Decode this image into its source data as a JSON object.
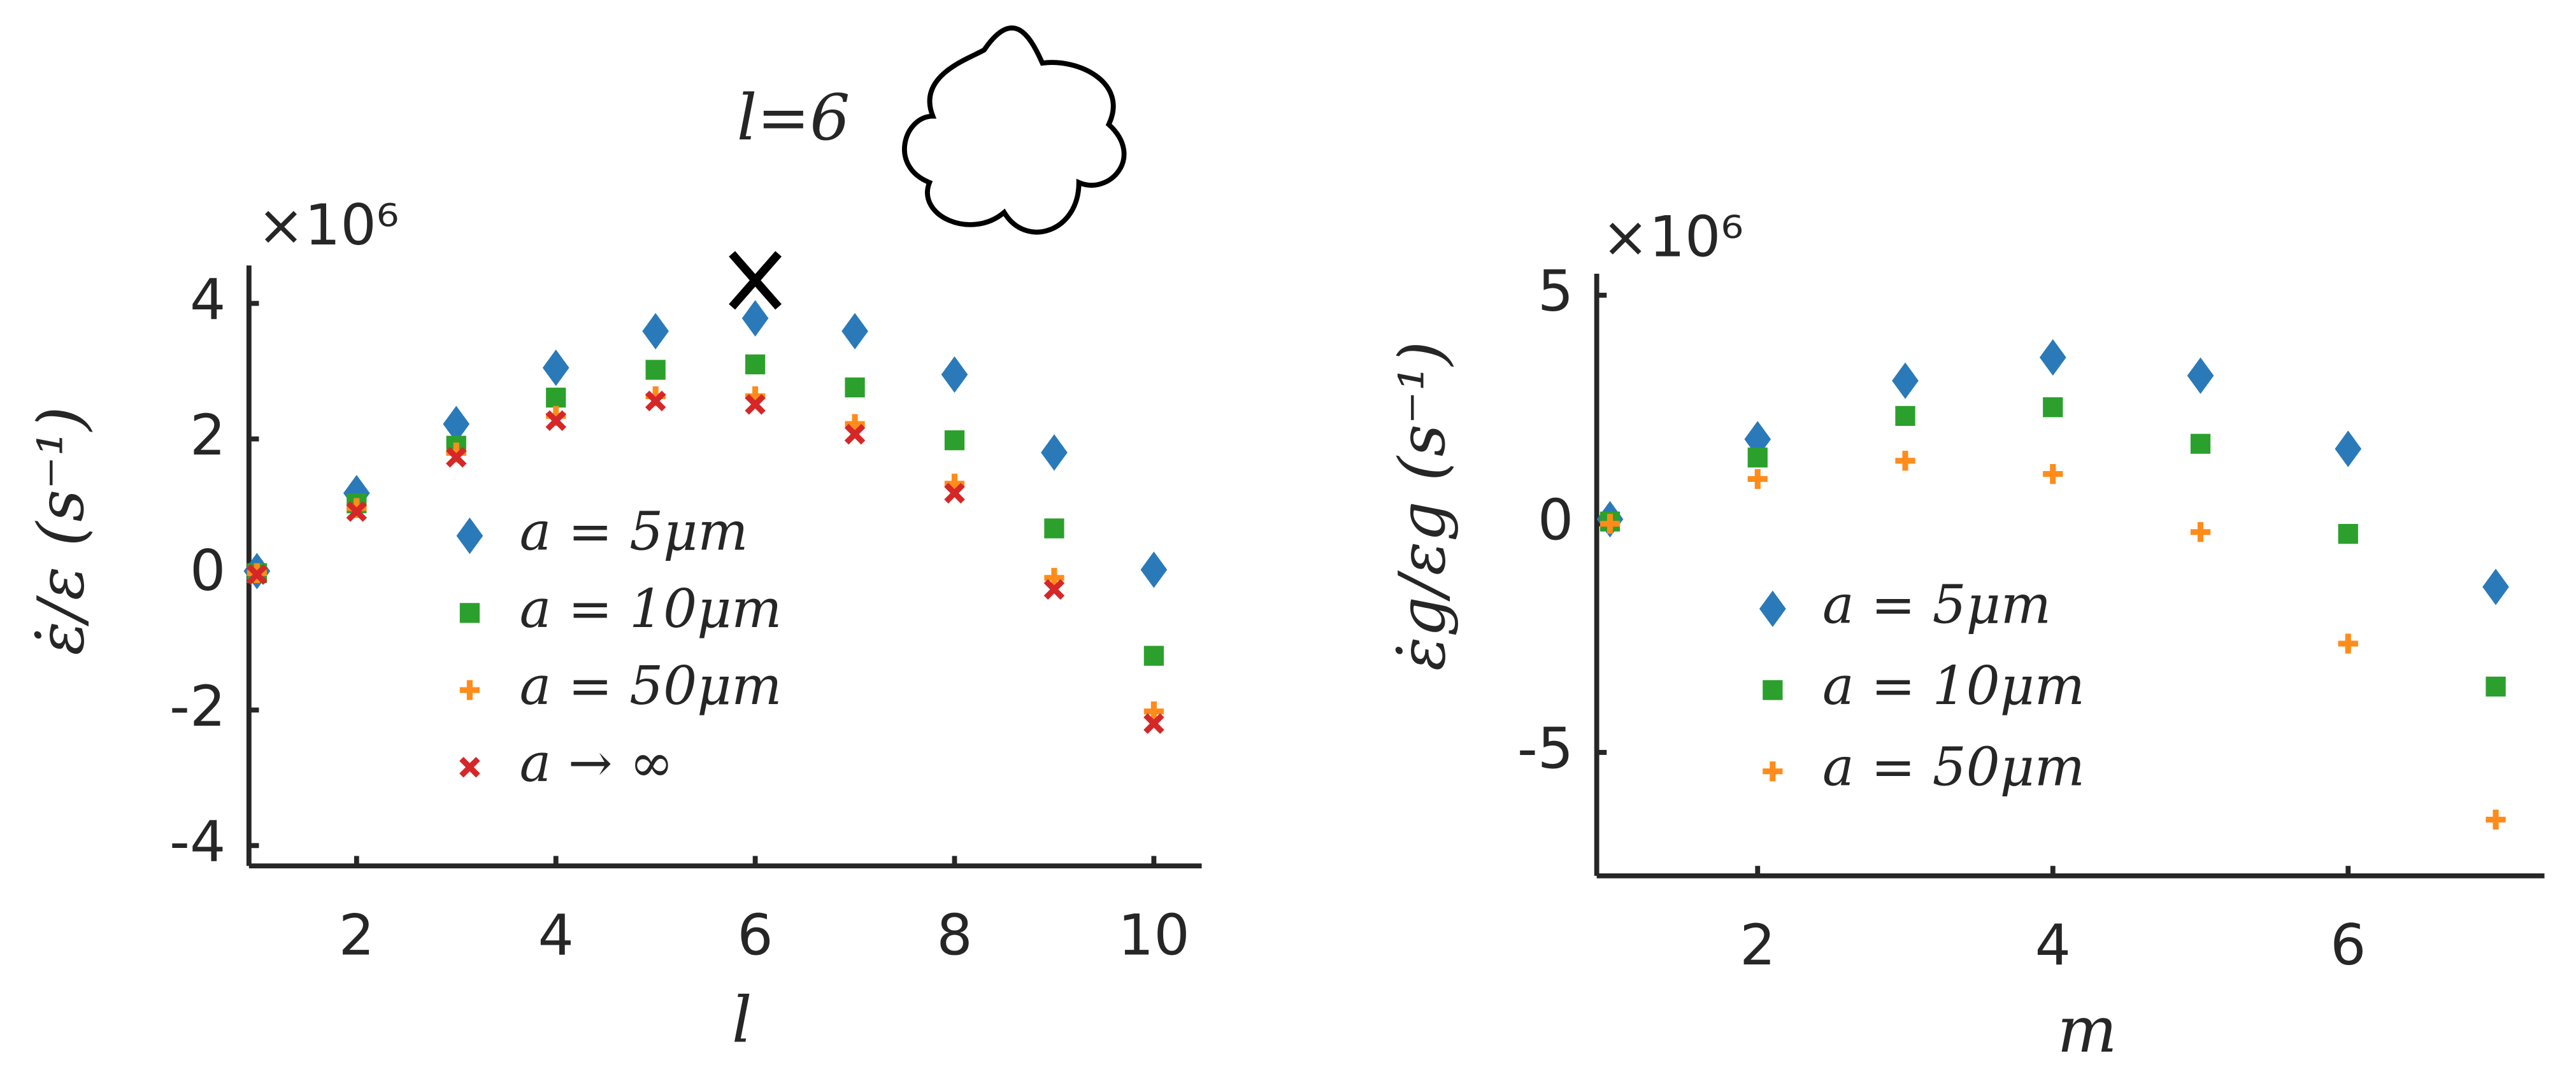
{
  "chart_data": [
    {
      "type": "scatter",
      "multiplier": "×10⁶",
      "ylabel": "ε̇/ε (s⁻¹)",
      "xlabel": "l",
      "x": [
        1,
        2,
        3,
        4,
        5,
        6,
        7,
        8,
        9,
        10
      ],
      "xlim": [
        0.92,
        10.48
      ],
      "xticks": [
        2,
        4,
        6,
        8,
        10
      ],
      "ylim": [
        -4.3,
        4.56
      ],
      "yticks": [
        -4,
        -2,
        0,
        2,
        4
      ],
      "annotation": "l=6",
      "highlight": {
        "x": 6,
        "y": 4.34
      },
      "series": [
        {
          "name": "a = 5μm",
          "color": "#2a7ab9",
          "marker": "diamond",
          "values": [
            0.05,
            1.2,
            2.22,
            3.05,
            3.59,
            3.78,
            3.59,
            2.95,
            1.8,
            0.07
          ]
        },
        {
          "name": "a = 10μm",
          "color": "#2ca02c",
          "marker": "square",
          "values": [
            0.02,
            1.05,
            1.9,
            2.61,
            3.02,
            3.1,
            2.76,
            1.98,
            0.68,
            -1.2
          ]
        },
        {
          "name": "a = 50μm",
          "color": "#ff8c1a",
          "marker": "plus",
          "values": [
            0.02,
            0.98,
            1.8,
            2.34,
            2.63,
            2.63,
            2.22,
            1.34,
            -0.05,
            -2.02
          ]
        },
        {
          "name": "a → ∞",
          "color": "#d62728",
          "marker": "cross",
          "values": [
            0,
            0.93,
            1.73,
            2.27,
            2.56,
            2.51,
            2.07,
            1.2,
            -0.22,
            -2.2
          ]
        }
      ]
    },
    {
      "type": "scatter",
      "multiplier": "×10⁶",
      "ylabel": "ε̇g/εg (s⁻¹)",
      "xlabel": "m",
      "x": [
        1,
        2,
        3,
        4,
        5,
        6,
        7
      ],
      "xlim": [
        0.91,
        7.33
      ],
      "xticks": [
        2,
        4,
        6
      ],
      "ylim": [
        -7.7,
        5.47
      ],
      "yticks": [
        -5,
        0,
        5
      ],
      "series": [
        {
          "name": "a = 5μm",
          "color": "#2a7ab9",
          "marker": "diamond",
          "values": [
            0.1,
            1.85,
            3.13,
            3.64,
            3.24,
            1.64,
            -1.38
          ]
        },
        {
          "name": "a = 10μm",
          "color": "#2ca02c",
          "marker": "square",
          "values": [
            0.05,
            1.45,
            2.36,
            2.55,
            1.75,
            -0.22,
            -3.56
          ]
        },
        {
          "name": "a = 50μm",
          "color": "#ff8c1a",
          "marker": "plus",
          "values": [
            0,
            0.98,
            1.38,
            1.09,
            -0.18,
            -2.62,
            -6.47
          ]
        }
      ]
    }
  ]
}
